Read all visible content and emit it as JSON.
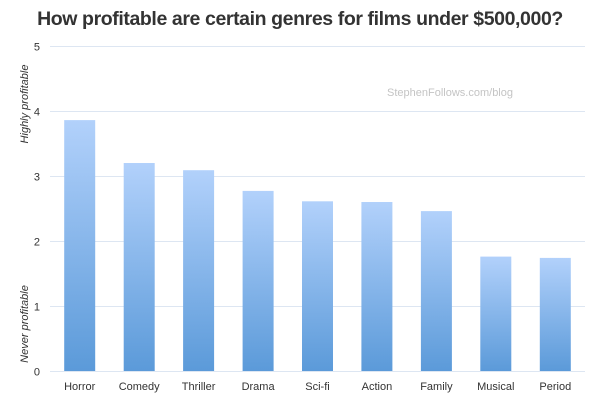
{
  "chart_data": {
    "type": "bar",
    "title": "How profitable are certain genres for films under $500,000?",
    "categories": [
      "Horror",
      "Comedy",
      "Thriller",
      "Drama",
      "Sci-fi",
      "Action",
      "Family",
      "Musical",
      "Period"
    ],
    "values": [
      3.86,
      3.2,
      3.09,
      2.77,
      2.61,
      2.6,
      2.46,
      1.76,
      1.74
    ],
    "ylim": [
      0,
      5
    ],
    "yticks": [
      0,
      1,
      2,
      3,
      4,
      5
    ],
    "xlabel": "",
    "ylabel_top": "Highly profitable",
    "ylabel_bottom": "Never profitable",
    "grid": true,
    "watermark": "StephenFollows.com/blog",
    "colors": {
      "bar_top": "#b2d1fb",
      "bar_bottom": "#5b9ad9",
      "grid": "#dde6f2",
      "text": "#333333"
    }
  }
}
